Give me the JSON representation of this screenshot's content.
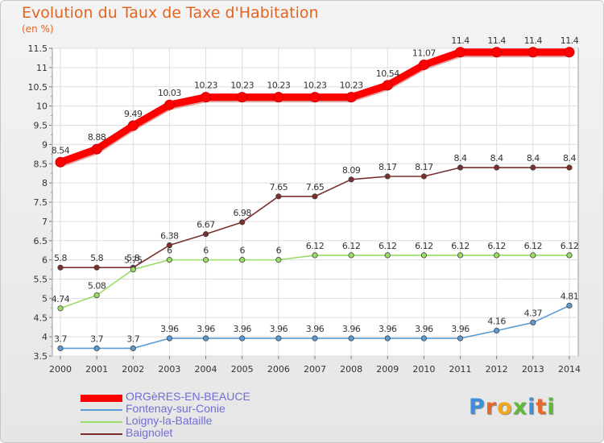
{
  "header": {
    "title": "Evolution du Taux de Taxe d'Habitation",
    "unit": "(en %)"
  },
  "logo": {
    "text": "Proxiti"
  },
  "chart_data": {
    "type": "line",
    "title": "Evolution du Taux de Taxe d'Habitation",
    "ylabel": "(en %)",
    "xlabel": "",
    "x": [
      "2000",
      "2001",
      "2002",
      "2003",
      "2004",
      "2005",
      "2006",
      "2007",
      "2008",
      "2009",
      "2010",
      "2011",
      "2012",
      "2013",
      "2014"
    ],
    "ylim": [
      3.5,
      11.5
    ],
    "yticks": [
      "3.5",
      "4",
      "4.5",
      "5",
      "5.5",
      "6",
      "6.5",
      "7",
      "7.5",
      "8",
      "8.5",
      "9",
      "9.5",
      "10",
      "10.5",
      "11",
      "11.5"
    ],
    "grid": true,
    "legend_position": "bottom-left",
    "series": [
      {
        "name": "ORGèRES-EN-BEAUCE",
        "color": "#ff0000",
        "values": [
          8.54,
          8.88,
          9.49,
          10.03,
          10.23,
          10.23,
          10.23,
          10.23,
          10.23,
          10.54,
          11.07,
          11.4,
          11.4,
          11.4,
          11.4
        ],
        "labels": [
          "8.54",
          "8.88",
          "9.49",
          "10.03",
          "10.23",
          "10.23",
          "10.23",
          "10.23",
          "10.23",
          "10.54",
          "11.07",
          "11.4",
          "11.4",
          "11.4",
          "11.4"
        ]
      },
      {
        "name": "Fontenay-sur-Conie",
        "color": "#5b9bd5",
        "values": [
          3.7,
          3.7,
          3.7,
          3.96,
          3.96,
          3.96,
          3.96,
          3.96,
          3.96,
          3.96,
          3.96,
          3.96,
          4.16,
          4.37,
          4.81
        ],
        "labels": [
          "3.7",
          "3.7",
          "3.7",
          "3.96",
          "3.96",
          "3.96",
          "3.96",
          "3.96",
          "3.96",
          "3.96",
          "3.96",
          "3.96",
          "4.16",
          "4.37",
          "4.81"
        ]
      },
      {
        "name": "Loigny-la-Bataille",
        "color": "#99dd66",
        "values": [
          4.74,
          5.08,
          5.75,
          6,
          6,
          6,
          6,
          6.12,
          6.12,
          6.12,
          6.12,
          6.12,
          6.12,
          6.12,
          6.12
        ],
        "labels": [
          "4.74",
          "5.08",
          "5.75",
          "6",
          "6",
          "6",
          "6",
          "6.12",
          "6.12",
          "6.12",
          "6.12",
          "6.12",
          "6.12",
          "6.12",
          "6.12"
        ]
      },
      {
        "name": "Baignolet",
        "color": "#7a2e2e",
        "values": [
          5.8,
          5.8,
          5.8,
          6.38,
          6.67,
          6.98,
          7.65,
          7.65,
          8.09,
          8.17,
          8.17,
          8.4,
          8.4,
          8.4,
          8.4
        ],
        "labels": [
          "5.8",
          "5.8",
          "5.8",
          "6.38",
          "6.67",
          "6.98",
          "7.65",
          "7.65",
          "8.09",
          "8.17",
          "8.17",
          "8.4",
          "8.4",
          "8.4",
          "8.4"
        ]
      }
    ]
  }
}
